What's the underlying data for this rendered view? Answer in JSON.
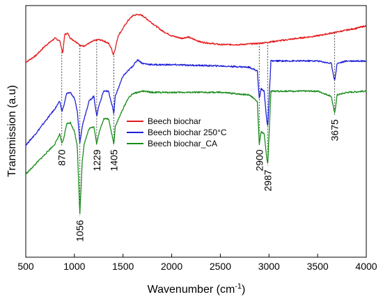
{
  "chart_data": {
    "type": "line",
    "title": "",
    "xlabel": "Wavenumber (cm-1)",
    "xlabel_base": "Wavenumber (cm",
    "xlabel_sup": "-1",
    "xlabel_close": ")",
    "ylabel": "Transmission (a.u)",
    "xlim": [
      500,
      4000
    ],
    "ylim": [
      0,
      100
    ],
    "x_ticks": [
      500,
      1000,
      1500,
      2000,
      2500,
      3000,
      3500,
      4000
    ],
    "x_tick_labels": [
      "500",
      "1000",
      "1500",
      "2000",
      "2500",
      "3000",
      "3500",
      "4000"
    ],
    "y_tick_labels_shown": false,
    "legend_position": "center",
    "series": [
      {
        "name": "Beech biochar",
        "color": "#e31a1c",
        "points": [
          [
            500,
            77.5
          ],
          [
            600,
            80
          ],
          [
            700,
            84
          ],
          [
            800,
            87
          ],
          [
            850,
            86
          ],
          [
            880,
            81
          ],
          [
            900,
            88.5
          ],
          [
            930,
            89
          ],
          [
            960,
            87
          ],
          [
            1000,
            86
          ],
          [
            1040,
            85
          ],
          [
            1060,
            84
          ],
          [
            1100,
            84
          ],
          [
            1150,
            85
          ],
          [
            1200,
            86
          ],
          [
            1250,
            86.5
          ],
          [
            1300,
            86
          ],
          [
            1350,
            85
          ],
          [
            1380,
            83
          ],
          [
            1400,
            80.5
          ],
          [
            1420,
            83
          ],
          [
            1450,
            88
          ],
          [
            1500,
            91
          ],
          [
            1550,
            94
          ],
          [
            1600,
            96
          ],
          [
            1650,
            96.5
          ],
          [
            1700,
            96
          ],
          [
            1800,
            93
          ],
          [
            1900,
            90
          ],
          [
            2000,
            88
          ],
          [
            2100,
            87
          ],
          [
            2170,
            87.5
          ],
          [
            2200,
            87
          ],
          [
            2300,
            85.5
          ],
          [
            2500,
            84.5
          ],
          [
            2700,
            84.5
          ],
          [
            2900,
            85
          ],
          [
            3000,
            85.5
          ],
          [
            3200,
            86.5
          ],
          [
            3500,
            88
          ],
          [
            3700,
            89.5
          ],
          [
            3900,
            91
          ],
          [
            4000,
            92
          ]
        ]
      },
      {
        "name": "Beech biochar 250°C",
        "color": "#1f1fd6",
        "points": [
          [
            500,
            44.5
          ],
          [
            600,
            49
          ],
          [
            700,
            54
          ],
          [
            800,
            59
          ],
          [
            850,
            62
          ],
          [
            870,
            58
          ],
          [
            890,
            60
          ],
          [
            920,
            65
          ],
          [
            960,
            65.5
          ],
          [
            1000,
            63
          ],
          [
            1030,
            58
          ],
          [
            1056,
            45.5
          ],
          [
            1080,
            52
          ],
          [
            1100,
            55
          ],
          [
            1150,
            62
          ],
          [
            1200,
            64
          ],
          [
            1229,
            56
          ],
          [
            1250,
            60
          ],
          [
            1300,
            66
          ],
          [
            1350,
            66
          ],
          [
            1390,
            60
          ],
          [
            1405,
            57
          ],
          [
            1420,
            64
          ],
          [
            1500,
            72
          ],
          [
            1600,
            76
          ],
          [
            1650,
            78.5
          ],
          [
            1700,
            77
          ],
          [
            1800,
            76.5
          ],
          [
            2000,
            76.5
          ],
          [
            2500,
            76
          ],
          [
            2800,
            75.5
          ],
          [
            2880,
            74
          ],
          [
            2900,
            63
          ],
          [
            2920,
            67
          ],
          [
            2950,
            66
          ],
          [
            2975,
            55
          ],
          [
            2987,
            52
          ],
          [
            3000,
            62
          ],
          [
            3020,
            78
          ],
          [
            3100,
            78
          ],
          [
            3500,
            78
          ],
          [
            3640,
            77
          ],
          [
            3675,
            70
          ],
          [
            3700,
            77
          ],
          [
            3800,
            78
          ],
          [
            4000,
            78
          ]
        ]
      },
      {
        "name": "Beech biochar_CA",
        "color": "#1a8c1a",
        "points": [
          [
            500,
            33
          ],
          [
            600,
            37
          ],
          [
            700,
            41
          ],
          [
            800,
            45
          ],
          [
            850,
            49
          ],
          [
            870,
            45
          ],
          [
            890,
            47
          ],
          [
            920,
            53
          ],
          [
            960,
            53.5
          ],
          [
            1000,
            50
          ],
          [
            1030,
            44
          ],
          [
            1056,
            17
          ],
          [
            1080,
            38
          ],
          [
            1100,
            45
          ],
          [
            1150,
            51
          ],
          [
            1200,
            52
          ],
          [
            1229,
            45
          ],
          [
            1250,
            49
          ],
          [
            1300,
            55
          ],
          [
            1350,
            55
          ],
          [
            1390,
            48
          ],
          [
            1405,
            45
          ],
          [
            1420,
            52
          ],
          [
            1500,
            59
          ],
          [
            1550,
            63
          ],
          [
            1600,
            65
          ],
          [
            1700,
            66
          ],
          [
            1800,
            65.5
          ],
          [
            2000,
            65.5
          ],
          [
            2500,
            65.5
          ],
          [
            2800,
            64.5
          ],
          [
            2880,
            62
          ],
          [
            2900,
            45
          ],
          [
            2920,
            50
          ],
          [
            2950,
            49
          ],
          [
            2975,
            40
          ],
          [
            2987,
            37
          ],
          [
            3000,
            48
          ],
          [
            3020,
            66
          ],
          [
            3100,
            66
          ],
          [
            3500,
            66
          ],
          [
            3640,
            64
          ],
          [
            3675,
            57
          ],
          [
            3700,
            64.5
          ],
          [
            3800,
            65.5
          ],
          [
            4000,
            66
          ]
        ]
      }
    ],
    "annotations": [
      {
        "label": "870",
        "x": 870,
        "label_position": "below"
      },
      {
        "label": "1056",
        "x": 1056,
        "label_position": "below"
      },
      {
        "label": "1229",
        "x": 1229,
        "label_position": "below"
      },
      {
        "label": "1405",
        "x": 1405,
        "label_position": "below"
      },
      {
        "label": "2900",
        "x": 2900,
        "label_position": "below"
      },
      {
        "label": "2987",
        "x": 2987,
        "label_position": "below"
      },
      {
        "label": "3675",
        "x": 3675,
        "label_position": "below"
      }
    ]
  }
}
